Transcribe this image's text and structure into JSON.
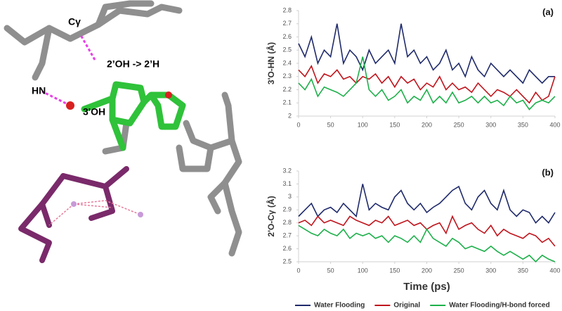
{
  "image_labels": [
    "Cγ",
    "2’OH -> 2’H",
    "HN",
    "3'OH"
  ],
  "chart_data": [
    {
      "type": "line",
      "label": "(a)",
      "ylabel": "3'O-HN (Å)",
      "x": [
        0,
        10,
        20,
        30,
        40,
        50,
        60,
        70,
        80,
        90,
        100,
        110,
        120,
        130,
        140,
        150,
        160,
        170,
        180,
        190,
        200,
        210,
        220,
        230,
        240,
        250,
        260,
        270,
        280,
        290,
        300,
        310,
        320,
        330,
        340,
        350,
        360,
        370,
        380,
        390,
        400
      ],
      "xlim": [
        0,
        400
      ],
      "xticks": [
        0,
        50,
        100,
        150,
        200,
        250,
        300,
        350,
        400
      ],
      "ylim": [
        2,
        2.8
      ],
      "yticks": [
        2,
        2.1,
        2.2,
        2.3,
        2.4,
        2.5,
        2.6,
        2.7,
        2.8
      ],
      "series": [
        {
          "name": "Water Flooding",
          "color": "#1f2a6b",
          "values": [
            2.55,
            2.45,
            2.6,
            2.4,
            2.5,
            2.45,
            2.7,
            2.4,
            2.5,
            2.45,
            2.35,
            2.5,
            2.4,
            2.45,
            2.5,
            2.4,
            2.7,
            2.45,
            2.5,
            2.4,
            2.45,
            2.35,
            2.4,
            2.5,
            2.35,
            2.4,
            2.3,
            2.45,
            2.35,
            2.3,
            2.4,
            2.35,
            2.3,
            2.35,
            2.3,
            2.25,
            2.35,
            2.3,
            2.25,
            2.3,
            2.3
          ]
        },
        {
          "name": "Original",
          "color": "#c0141c",
          "values": [
            2.35,
            2.3,
            2.38,
            2.25,
            2.32,
            2.3,
            2.35,
            2.28,
            2.3,
            2.25,
            2.3,
            2.28,
            2.32,
            2.25,
            2.3,
            2.22,
            2.3,
            2.25,
            2.28,
            2.2,
            2.25,
            2.22,
            2.3,
            2.2,
            2.25,
            2.2,
            2.22,
            2.18,
            2.25,
            2.2,
            2.15,
            2.2,
            2.18,
            2.15,
            2.2,
            2.15,
            2.1,
            2.18,
            2.12,
            2.15,
            2.3
          ]
        },
        {
          "name": "Water Flooding/H-bond forced",
          "color": "#1db04a",
          "values": [
            2.25,
            2.2,
            2.28,
            2.15,
            2.22,
            2.2,
            2.18,
            2.15,
            2.2,
            2.25,
            2.45,
            2.2,
            2.15,
            2.2,
            2.12,
            2.15,
            2.2,
            2.1,
            2.15,
            2.12,
            2.2,
            2.1,
            2.15,
            2.1,
            2.18,
            2.1,
            2.12,
            2.15,
            2.1,
            2.15,
            2.1,
            2.12,
            2.08,
            2.15,
            2.1,
            2.12,
            2.05,
            2.1,
            2.12,
            2.1,
            2.15
          ]
        }
      ]
    },
    {
      "type": "line",
      "label": "(b)",
      "ylabel": "2'O-Cγ (Å)",
      "xlabel": "Time (ps)",
      "x": [
        0,
        10,
        20,
        30,
        40,
        50,
        60,
        70,
        80,
        90,
        100,
        110,
        120,
        130,
        140,
        150,
        160,
        170,
        180,
        190,
        200,
        210,
        220,
        230,
        240,
        250,
        260,
        270,
        280,
        290,
        300,
        310,
        320,
        330,
        340,
        350,
        360,
        370,
        380,
        390,
        400
      ],
      "xlim": [
        0,
        400
      ],
      "xticks": [
        0,
        50,
        100,
        150,
        200,
        250,
        300,
        350,
        400
      ],
      "ylim": [
        2.5,
        3.2
      ],
      "yticks": [
        2.5,
        2.6,
        2.7,
        2.8,
        2.9,
        3,
        3.1,
        3.2
      ],
      "series": [
        {
          "color": "#1f2a6b",
          "values": [
            2.85,
            2.9,
            2.95,
            2.85,
            2.9,
            2.92,
            2.88,
            2.95,
            2.9,
            2.85,
            3.1,
            2.9,
            2.95,
            2.92,
            2.9,
            3.0,
            3.05,
            2.95,
            2.9,
            2.95,
            2.88,
            2.92,
            2.95,
            3.0,
            3.05,
            3.08,
            2.95,
            2.9,
            3.0,
            3.05,
            2.95,
            2.9,
            3.05,
            2.9,
            2.85,
            2.9,
            2.88,
            2.8,
            2.85,
            2.8,
            2.88
          ]
        },
        {
          "color": "#c0141c",
          "values": [
            2.8,
            2.82,
            2.78,
            2.85,
            2.8,
            2.82,
            2.8,
            2.78,
            2.85,
            2.82,
            2.8,
            2.78,
            2.82,
            2.8,
            2.85,
            2.78,
            2.8,
            2.82,
            2.78,
            2.8,
            2.75,
            2.78,
            2.8,
            2.72,
            2.85,
            2.75,
            2.78,
            2.8,
            2.75,
            2.72,
            2.78,
            2.7,
            2.75,
            2.72,
            2.7,
            2.68,
            2.72,
            2.7,
            2.65,
            2.68,
            2.62
          ]
        },
        {
          "color": "#1db04a",
          "values": [
            2.78,
            2.75,
            2.72,
            2.7,
            2.75,
            2.72,
            2.7,
            2.75,
            2.68,
            2.72,
            2.7,
            2.72,
            2.68,
            2.7,
            2.65,
            2.7,
            2.68,
            2.65,
            2.7,
            2.65,
            2.75,
            2.68,
            2.65,
            2.62,
            2.68,
            2.65,
            2.6,
            2.62,
            2.6,
            2.58,
            2.62,
            2.58,
            2.55,
            2.58,
            2.55,
            2.52,
            2.55,
            2.5,
            2.55,
            2.52,
            2.5
          ]
        }
      ]
    }
  ]
}
